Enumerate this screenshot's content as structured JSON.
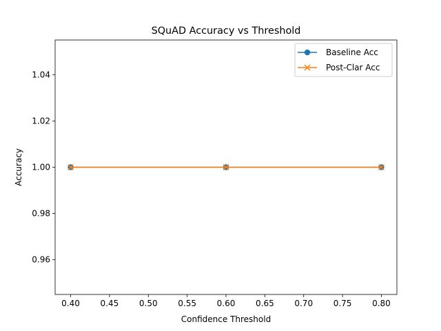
{
  "chart_data": {
    "type": "line",
    "title": "SQuAD Accuracy vs Threshold",
    "xlabel": "Confidence Threshold",
    "ylabel": "Accuracy",
    "xlim": [
      0.38,
      0.82
    ],
    "ylim": [
      0.945,
      1.055
    ],
    "xticks": [
      0.4,
      0.45,
      0.5,
      0.55,
      0.6,
      0.65,
      0.7,
      0.75,
      0.8
    ],
    "xtick_labels": [
      "0.40",
      "0.45",
      "0.50",
      "0.55",
      "0.60",
      "0.65",
      "0.70",
      "0.75",
      "0.80"
    ],
    "yticks": [
      0.96,
      0.98,
      1.0,
      1.02,
      1.04
    ],
    "ytick_labels": [
      "0.96",
      "0.98",
      "1.00",
      "1.02",
      "1.04"
    ],
    "grid": false,
    "legend_position": "top-right",
    "series": [
      {
        "name": "Baseline Acc",
        "color": "#1f77b4",
        "marker": "circle",
        "x": [
          0.4,
          0.6,
          0.8
        ],
        "y": [
          1.0,
          1.0,
          1.0
        ]
      },
      {
        "name": "Post-Clar Acc",
        "color": "#ff7f0e",
        "marker": "x",
        "x": [
          0.4,
          0.6,
          0.8
        ],
        "y": [
          1.0,
          1.0,
          1.0
        ]
      }
    ]
  }
}
